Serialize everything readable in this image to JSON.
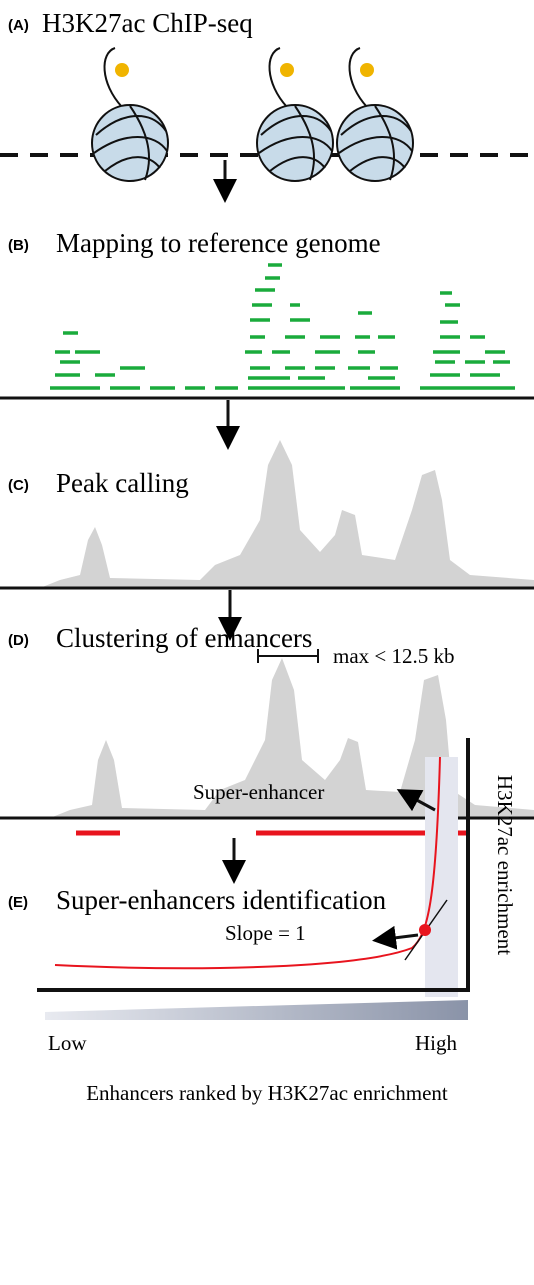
{
  "panels": [
    {
      "label": "(A)",
      "title": "H3K27ac ChIP-seq"
    },
    {
      "label": "(B)",
      "title": "Mapping to reference genome"
    },
    {
      "label": "(C)",
      "title": "Peak calling"
    },
    {
      "label": "(D)",
      "title": "Clustering of enhancers",
      "annotation": "max < 12.5 kb"
    },
    {
      "label": "(E)",
      "title": "Super-enhancers identification",
      "super_enhancer_label": "Super-enhancer",
      "slope_label": "Slope = 1",
      "y_axis_label": "H3K27ac enrichment",
      "low_label": "Low",
      "high_label": "High",
      "x_axis_label": "Enhancers ranked by H3K27ac enrichment"
    }
  ]
}
